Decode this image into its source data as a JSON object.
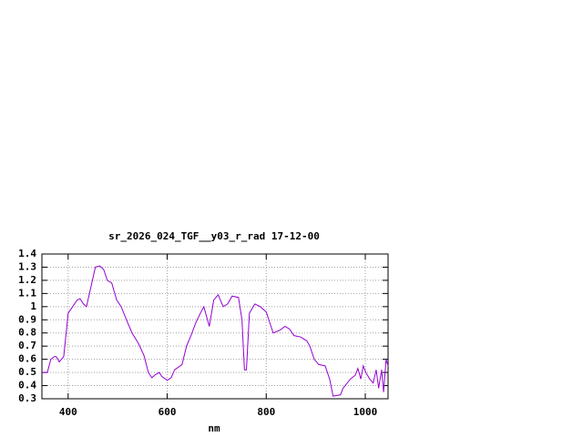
{
  "chart_data": {
    "type": "line",
    "title": "sr_2026_024_TGF__y03_r_rad 17-12-00",
    "x_label": "nm",
    "xlim": [
      347,
      1046
    ],
    "ylim": [
      0.3,
      1.4
    ],
    "xticks": [
      400,
      600,
      800,
      1000
    ],
    "yticks": [
      0.3,
      0.4,
      0.5,
      0.6,
      0.7,
      0.8,
      0.9,
      1,
      1.1,
      1.2,
      1.3,
      1.4
    ],
    "grid": true,
    "series": [
      {
        "color": "#9400d3",
        "x": [
          347,
          358,
          365,
          372,
          376,
          382,
          391,
          396,
          400,
          409,
          418,
          424,
          431,
          437,
          446,
          455,
          464,
          472,
          479,
          488,
          498,
          507,
          520,
          529,
          542,
          553,
          562,
          569,
          575,
          584,
          589,
          600,
          608,
          615,
          630,
          639,
          648,
          658,
          667,
          674,
          685,
          694,
          703,
          713,
          722,
          731,
          744,
          751,
          756,
          760,
          766,
          777,
          788,
          800,
          814,
          827,
          838,
          847,
          856,
          869,
          882,
          888,
          897,
          906,
          919,
          928,
          935,
          950,
          955,
          970,
          980,
          985,
          991,
          996,
          1001,
          1009,
          1016,
          1022,
          1027,
          1033,
          1037,
          1042,
          1046
        ],
        "values": [
          0.5,
          0.5,
          0.6,
          0.62,
          0.62,
          0.58,
          0.62,
          0.8,
          0.95,
          1.0,
          1.05,
          1.06,
          1.02,
          1.0,
          1.15,
          1.3,
          1.31,
          1.28,
          1.2,
          1.18,
          1.05,
          1.0,
          0.88,
          0.8,
          0.72,
          0.63,
          0.5,
          0.46,
          0.48,
          0.5,
          0.47,
          0.44,
          0.46,
          0.52,
          0.56,
          0.7,
          0.78,
          0.88,
          0.95,
          1.0,
          0.85,
          1.05,
          1.09,
          1.0,
          1.02,
          1.08,
          1.07,
          0.9,
          0.52,
          0.52,
          0.95,
          1.02,
          1.0,
          0.96,
          0.8,
          0.82,
          0.85,
          0.83,
          0.78,
          0.77,
          0.74,
          0.7,
          0.6,
          0.56,
          0.55,
          0.45,
          0.32,
          0.33,
          0.38,
          0.45,
          0.48,
          0.53,
          0.45,
          0.55,
          0.5,
          0.45,
          0.42,
          0.52,
          0.38,
          0.52,
          0.35,
          0.6,
          0.55
        ]
      }
    ]
  }
}
